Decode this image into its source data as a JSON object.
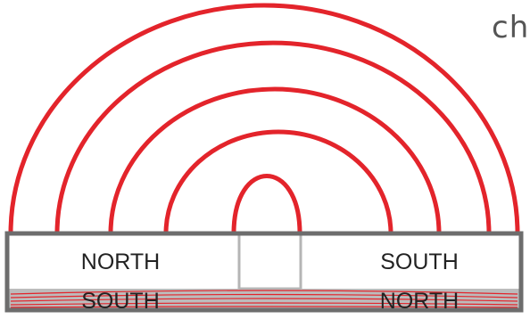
{
  "corner_text": "ch",
  "magnet": {
    "top_left_pole": "NORTH",
    "top_right_pole": "SOUTH",
    "bottom_left_pole": "SOUTH",
    "bottom_right_pole": "NORTH"
  },
  "colors": {
    "field_line": "#e3242b",
    "magnet_border": "#6d6d6d",
    "magnet_top_fill": "#ffffff",
    "magnet_bottom_fill": "#bcbcbc",
    "gap_border": "#b5b5b5",
    "text": "#222222"
  }
}
